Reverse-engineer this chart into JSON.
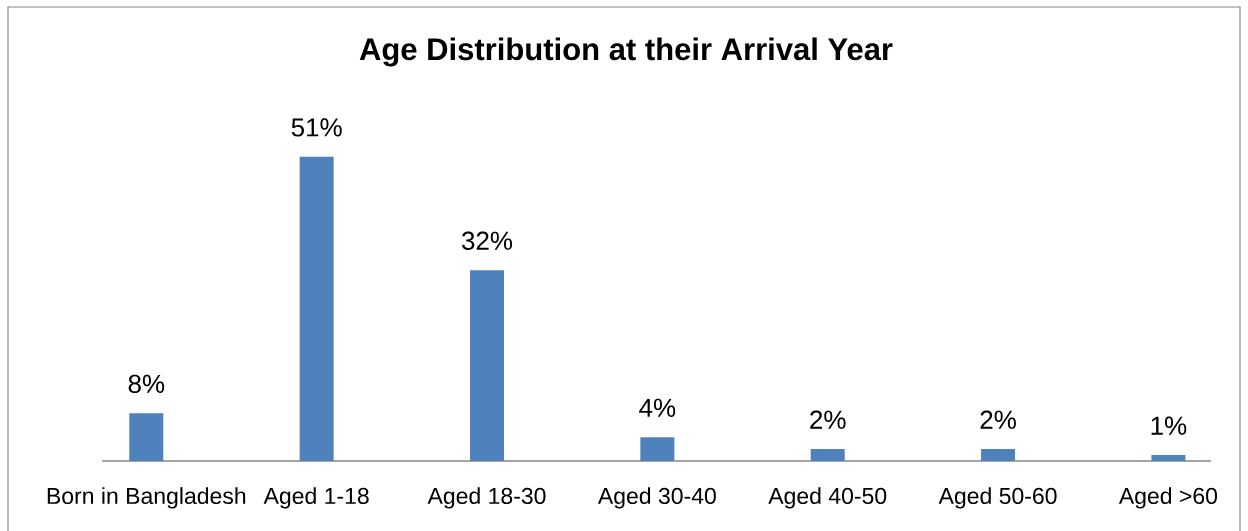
{
  "chart_data": {
    "type": "bar",
    "title": "Age Distribution at their Arrival Year",
    "categories": [
      "Born in Bangladesh",
      "Aged 1-18",
      "Aged 18-30",
      "Aged 30-40",
      "Aged 40-50",
      "Aged 50-60",
      "Aged >60"
    ],
    "values": [
      8,
      51,
      32,
      4,
      2,
      2,
      1
    ],
    "color": "#4f81bd",
    "value_labels": [
      "8%",
      "51%",
      "32%",
      "4%",
      "2%",
      "2%",
      "1%"
    ],
    "tick_labels": "x"
  }
}
